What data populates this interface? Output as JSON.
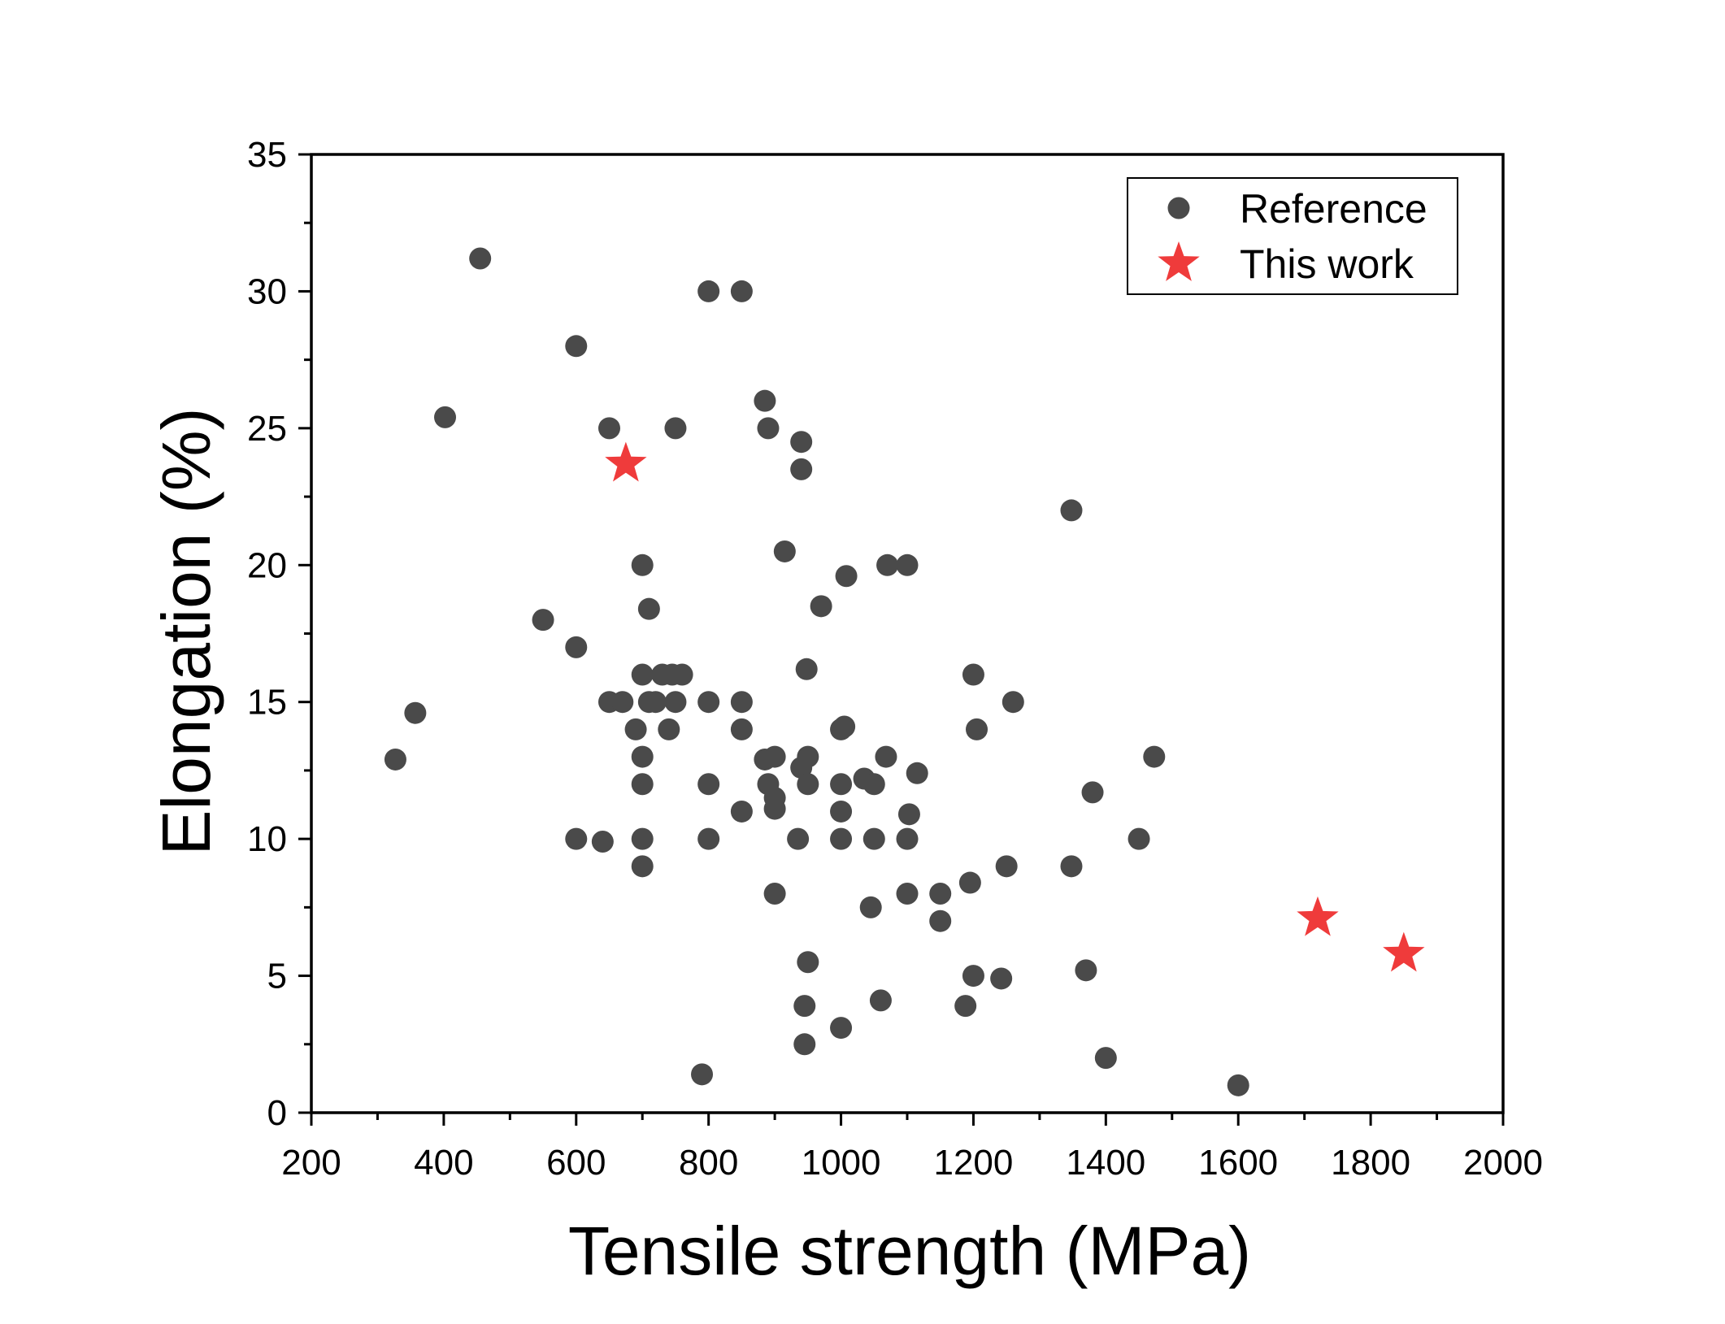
{
  "chart_data": {
    "type": "scatter",
    "title": "",
    "xlabel": "Tensile strength (MPa)",
    "ylabel": "Elongation (%)",
    "xlim": [
      200,
      2000
    ],
    "ylim": [
      0,
      35
    ],
    "xticks": [
      200,
      400,
      600,
      800,
      1000,
      1200,
      1400,
      1600,
      1800,
      2000
    ],
    "yticks": [
      0,
      5,
      10,
      15,
      20,
      25,
      30,
      35
    ],
    "grid": false,
    "legend_position": "top-right",
    "series": [
      {
        "name": "Reference",
        "marker": "circle",
        "color": "#4a4a4a",
        "points": [
          [
            327,
            12.9
          ],
          [
            357,
            14.6
          ],
          [
            402,
            25.4
          ],
          [
            455,
            31.2
          ],
          [
            550,
            18.0
          ],
          [
            600,
            28.0
          ],
          [
            600,
            17.0
          ],
          [
            600,
            10.0
          ],
          [
            640,
            9.9
          ],
          [
            650,
            25.0
          ],
          [
            650,
            15.0
          ],
          [
            670,
            15.0
          ],
          [
            690,
            14.0
          ],
          [
            700,
            20.0
          ],
          [
            700,
            16.0
          ],
          [
            700,
            13.0
          ],
          [
            700,
            12.0
          ],
          [
            700,
            10.0
          ],
          [
            700,
            9.0
          ],
          [
            710,
            18.4
          ],
          [
            710,
            15.0
          ],
          [
            720,
            15.0
          ],
          [
            730,
            16.0
          ],
          [
            740,
            14.0
          ],
          [
            745,
            16.0
          ],
          [
            750,
            25.0
          ],
          [
            750,
            15.0
          ],
          [
            760,
            16.0
          ],
          [
            790,
            1.4
          ],
          [
            800,
            30.0
          ],
          [
            800,
            15.0
          ],
          [
            800,
            12.0
          ],
          [
            800,
            10.0
          ],
          [
            850,
            30.0
          ],
          [
            850,
            15.0
          ],
          [
            850,
            14.0
          ],
          [
            850,
            11.0
          ],
          [
            885,
            26.0
          ],
          [
            885,
            12.9
          ],
          [
            890,
            25.0
          ],
          [
            890,
            12.0
          ],
          [
            900,
            13.0
          ],
          [
            900,
            11.5
          ],
          [
            900,
            11.1
          ],
          [
            900,
            8.0
          ],
          [
            915,
            20.5
          ],
          [
            935,
            10.0
          ],
          [
            940,
            24.5
          ],
          [
            940,
            23.5
          ],
          [
            940,
            12.6
          ],
          [
            945,
            2.5
          ],
          [
            945,
            3.9
          ],
          [
            948,
            16.2
          ],
          [
            950,
            13.0
          ],
          [
            950,
            12.0
          ],
          [
            950,
            5.5
          ],
          [
            970,
            18.5
          ],
          [
            1000,
            14.0
          ],
          [
            1000,
            12.0
          ],
          [
            1000,
            11.0
          ],
          [
            1000,
            10.0
          ],
          [
            1000,
            3.1
          ],
          [
            1005,
            14.1
          ],
          [
            1008,
            19.6
          ],
          [
            1035,
            12.2
          ],
          [
            1045,
            7.5
          ],
          [
            1050,
            12.0
          ],
          [
            1050,
            10.0
          ],
          [
            1060,
            4.1
          ],
          [
            1068,
            13.0
          ],
          [
            1070,
            20.0
          ],
          [
            1100,
            20.0
          ],
          [
            1100,
            10.0
          ],
          [
            1100,
            8.0
          ],
          [
            1103,
            10.9
          ],
          [
            1115,
            12.4
          ],
          [
            1150,
            8.0
          ],
          [
            1150,
            7.0
          ],
          [
            1188,
            3.9
          ],
          [
            1195,
            8.4
          ],
          [
            1200,
            16.0
          ],
          [
            1200,
            5.0
          ],
          [
            1205,
            14.0
          ],
          [
            1242,
            4.9
          ],
          [
            1250,
            9.0
          ],
          [
            1260,
            15.0
          ],
          [
            1348,
            22.0
          ],
          [
            1348,
            9.0
          ],
          [
            1370,
            5.2
          ],
          [
            1380,
            11.7
          ],
          [
            1400,
            2.0
          ],
          [
            1450,
            10.0
          ],
          [
            1473,
            13.0
          ],
          [
            1600,
            1.0
          ]
        ]
      },
      {
        "name": "This work",
        "marker": "star",
        "color": "#ef3b3b",
        "points": [
          [
            675,
            23.7
          ],
          [
            1720,
            7.1
          ],
          [
            1850,
            5.8
          ]
        ]
      }
    ]
  }
}
